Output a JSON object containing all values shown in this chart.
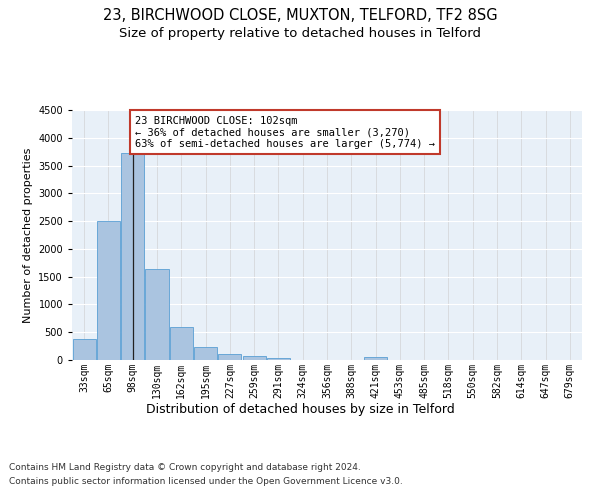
{
  "title1": "23, BIRCHWOOD CLOSE, MUXTON, TELFORD, TF2 8SG",
  "title2": "Size of property relative to detached houses in Telford",
  "xlabel": "Distribution of detached houses by size in Telford",
  "ylabel": "Number of detached properties",
  "categories": [
    "33sqm",
    "65sqm",
    "98sqm",
    "130sqm",
    "162sqm",
    "195sqm",
    "227sqm",
    "259sqm",
    "291sqm",
    "324sqm",
    "356sqm",
    "388sqm",
    "421sqm",
    "453sqm",
    "485sqm",
    "518sqm",
    "550sqm",
    "582sqm",
    "614sqm",
    "647sqm",
    "679sqm"
  ],
  "values": [
    370,
    2500,
    3730,
    1640,
    590,
    230,
    110,
    65,
    40,
    0,
    0,
    0,
    60,
    0,
    0,
    0,
    0,
    0,
    0,
    0,
    0
  ],
  "bar_color": "#aac4e0",
  "bar_edge_color": "#5a9fd4",
  "annotation_line1": "23 BIRCHWOOD CLOSE: 102sqm",
  "annotation_line2": "← 36% of detached houses are smaller (3,270)",
  "annotation_line3": "63% of semi-detached houses are larger (5,774) →",
  "annotation_box_color": "#ffffff",
  "annotation_box_edge": "#c0392b",
  "vline_x": 2,
  "ylim": [
    0,
    4500
  ],
  "yticks": [
    0,
    500,
    1000,
    1500,
    2000,
    2500,
    3000,
    3500,
    4000,
    4500
  ],
  "footer1": "Contains HM Land Registry data © Crown copyright and database right 2024.",
  "footer2": "Contains public sector information licensed under the Open Government Licence v3.0.",
  "bg_color": "#e8f0f8",
  "fig_bg_color": "#ffffff",
  "title1_fontsize": 10.5,
  "title2_fontsize": 9.5,
  "xlabel_fontsize": 9,
  "ylabel_fontsize": 8,
  "tick_fontsize": 7,
  "annotation_fontsize": 7.5,
  "footer_fontsize": 6.5
}
